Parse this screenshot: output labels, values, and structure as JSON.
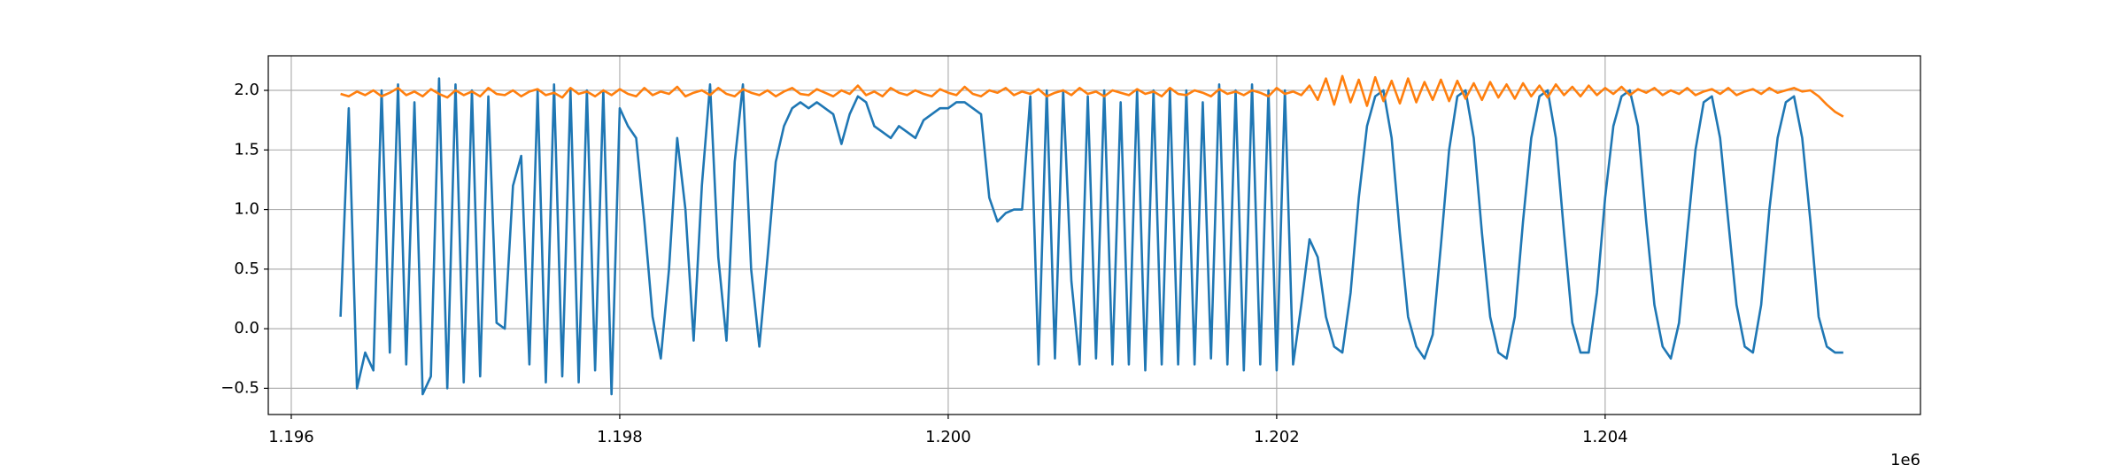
{
  "chart_data": {
    "type": "line",
    "x": [
      1196300,
      1196350,
      1196400,
      1196450,
      1196500,
      1196550,
      1196600,
      1196650,
      1196700,
      1196750,
      1196800,
      1196850,
      1196900,
      1196950,
      1197000,
      1197050,
      1197100,
      1197150,
      1197200,
      1197250,
      1197300,
      1197350,
      1197400,
      1197450,
      1197500,
      1197550,
      1197600,
      1197650,
      1197700,
      1197750,
      1197800,
      1197850,
      1197900,
      1197950,
      1198000,
      1198050,
      1198100,
      1198150,
      1198200,
      1198250,
      1198300,
      1198350,
      1198400,
      1198450,
      1198500,
      1198550,
      1198600,
      1198650,
      1198700,
      1198750,
      1198800,
      1198850,
      1198900,
      1198950,
      1199000,
      1199050,
      1199100,
      1199150,
      1199200,
      1199250,
      1199300,
      1199350,
      1199400,
      1199450,
      1199500,
      1199550,
      1199600,
      1199650,
      1199700,
      1199750,
      1199800,
      1199850,
      1199900,
      1199950,
      1200000,
      1200050,
      1200100,
      1200150,
      1200200,
      1200250,
      1200300,
      1200350,
      1200400,
      1200450,
      1200500,
      1200550,
      1200600,
      1200650,
      1200700,
      1200750,
      1200800,
      1200850,
      1200900,
      1200950,
      1201000,
      1201050,
      1201100,
      1201150,
      1201200,
      1201250,
      1201300,
      1201350,
      1201400,
      1201450,
      1201500,
      1201550,
      1201600,
      1201650,
      1201700,
      1201750,
      1201800,
      1201850,
      1201900,
      1201950,
      1202000,
      1202050,
      1202100,
      1202150,
      1202200,
      1202250,
      1202300,
      1202350,
      1202400,
      1202450,
      1202500,
      1202550,
      1202600,
      1202650,
      1202700,
      1202750,
      1202800,
      1202850,
      1202900,
      1202950,
      1203000,
      1203050,
      1203100,
      1203150,
      1203200,
      1203250,
      1203300,
      1203350,
      1203400,
      1203450,
      1203500,
      1203550,
      1203600,
      1203650,
      1203700,
      1203750,
      1203800,
      1203850,
      1203900,
      1203950,
      1204000,
      1204050,
      1204100,
      1204150,
      1204200,
      1204250,
      1204300,
      1204350,
      1204400,
      1204450,
      1204500,
      1204550,
      1204600,
      1204650,
      1204700,
      1204750,
      1204800,
      1204850,
      1204900,
      1204950,
      1205000,
      1205050,
      1205100,
      1205150,
      1205200,
      1205250,
      1205300,
      1205350,
      1205400,
      1205450
    ],
    "series": [
      {
        "color": "#1f77b4",
        "values": [
          0.1,
          1.85,
          -0.5,
          -0.2,
          -0.35,
          2.0,
          -0.2,
          2.05,
          -0.3,
          1.9,
          -0.55,
          -0.4,
          2.1,
          -0.5,
          2.05,
          -0.45,
          2.0,
          -0.4,
          1.95,
          0.05,
          0.0,
          1.2,
          1.45,
          -0.3,
          2.0,
          -0.45,
          2.05,
          -0.4,
          2.0,
          -0.45,
          2.0,
          -0.35,
          2.0,
          -0.55,
          1.85,
          1.7,
          1.6,
          0.9,
          0.1,
          -0.25,
          0.5,
          1.6,
          1.0,
          -0.1,
          1.2,
          2.05,
          0.6,
          -0.1,
          1.4,
          2.05,
          0.5,
          -0.15,
          0.6,
          1.4,
          1.7,
          1.85,
          1.9,
          1.85,
          1.9,
          1.85,
          1.8,
          1.55,
          1.8,
          1.95,
          1.9,
          1.7,
          1.65,
          1.6,
          1.7,
          1.65,
          1.6,
          1.75,
          1.8,
          1.85,
          1.85,
          1.9,
          1.9,
          1.85,
          1.8,
          1.1,
          0.9,
          0.97,
          1.0,
          1.0,
          1.95,
          -0.3,
          2.0,
          -0.25,
          2.0,
          0.4,
          -0.3,
          1.95,
          -0.25,
          2.0,
          -0.3,
          1.9,
          -0.3,
          2.0,
          -0.35,
          2.0,
          -0.3,
          2.0,
          -0.3,
          2.0,
          -0.3,
          1.9,
          -0.25,
          2.05,
          -0.3,
          2.0,
          -0.35,
          2.05,
          -0.3,
          2.0,
          -0.35,
          2.0,
          -0.3,
          0.2,
          0.75,
          0.6,
          0.1,
          -0.15,
          -0.2,
          0.3,
          1.1,
          1.7,
          1.95,
          2.0,
          1.6,
          0.8,
          0.1,
          -0.15,
          -0.25,
          -0.05,
          0.7,
          1.5,
          1.95,
          2.0,
          1.6,
          0.8,
          0.1,
          -0.2,
          -0.25,
          0.1,
          0.9,
          1.6,
          1.95,
          2.0,
          1.6,
          0.8,
          0.05,
          -0.2,
          -0.2,
          0.3,
          1.1,
          1.7,
          1.95,
          2.0,
          1.7,
          0.9,
          0.2,
          -0.15,
          -0.25,
          0.05,
          0.8,
          1.5,
          1.9,
          1.95,
          1.6,
          0.9,
          0.2,
          -0.15,
          -0.2,
          0.2,
          1.0,
          1.6,
          1.9,
          1.95,
          1.6,
          0.9,
          0.1,
          -0.15,
          -0.2,
          -0.2
        ]
      },
      {
        "color": "#ff7f0e",
        "values": [
          1.97,
          1.95,
          1.99,
          1.96,
          2.0,
          1.95,
          1.98,
          2.02,
          1.96,
          1.99,
          1.95,
          2.01,
          1.97,
          1.94,
          2.0,
          1.96,
          1.99,
          1.95,
          2.02,
          1.97,
          1.96,
          2.0,
          1.95,
          1.99,
          2.01,
          1.96,
          1.98,
          1.94,
          2.02,
          1.97,
          1.99,
          1.95,
          2.0,
          1.96,
          2.01,
          1.97,
          1.95,
          2.02,
          1.96,
          1.99,
          1.97,
          2.03,
          1.95,
          1.98,
          2.0,
          1.96,
          2.02,
          1.97,
          1.95,
          2.01,
          1.98,
          1.96,
          2.0,
          1.95,
          1.99,
          2.02,
          1.97,
          1.96,
          2.01,
          1.98,
          1.95,
          2.0,
          1.97,
          2.04,
          1.96,
          1.99,
          1.95,
          2.02,
          1.98,
          1.96,
          2.0,
          1.97,
          1.95,
          2.01,
          1.98,
          1.96,
          2.03,
          1.97,
          1.95,
          2.0,
          1.98,
          2.02,
          1.96,
          1.99,
          1.97,
          2.01,
          1.95,
          1.98,
          2.0,
          1.96,
          2.02,
          1.97,
          1.99,
          1.95,
          2.0,
          1.98,
          1.96,
          2.01,
          1.97,
          1.99,
          1.95,
          2.02,
          1.97,
          1.96,
          2.0,
          1.98,
          1.95,
          2.01,
          1.97,
          1.99,
          1.96,
          2.0,
          1.98,
          1.95,
          2.02,
          1.97,
          1.99,
          1.96,
          2.04,
          1.92,
          2.1,
          1.88,
          2.12,
          1.9,
          2.09,
          1.87,
          2.11,
          1.91,
          2.08,
          1.89,
          2.1,
          1.9,
          2.07,
          1.92,
          2.09,
          1.91,
          2.08,
          1.93,
          2.06,
          1.92,
          2.07,
          1.94,
          2.05,
          1.93,
          2.06,
          1.95,
          2.04,
          1.94,
          2.05,
          1.96,
          2.03,
          1.95,
          2.04,
          1.96,
          2.02,
          1.97,
          2.03,
          1.96,
          2.01,
          1.98,
          2.02,
          1.96,
          2.0,
          1.97,
          2.02,
          1.96,
          1.99,
          2.01,
          1.97,
          2.02,
          1.96,
          1.99,
          2.01,
          1.97,
          2.02,
          1.98,
          2.0,
          2.02,
          1.99,
          2.0,
          1.95,
          1.88,
          1.82,
          1.78
        ]
      }
    ],
    "xlim": [
      1195860,
      1205920
    ],
    "ylim": [
      -0.72,
      2.29
    ],
    "xticks": [
      {
        "value": 1196000,
        "label": "1.196"
      },
      {
        "value": 1198000,
        "label": "1.198"
      },
      {
        "value": 1200000,
        "label": "1.200"
      },
      {
        "value": 1202000,
        "label": "1.202"
      },
      {
        "value": 1204000,
        "label": "1.204"
      }
    ],
    "yticks": [
      {
        "value": -0.5,
        "label": "−0.5"
      },
      {
        "value": 0,
        "label": "0.0"
      },
      0.5,
      {
        "value": 1,
        "label": "1.0"
      },
      1.5,
      {
        "value": 2,
        "label": "2.0"
      }
    ],
    "x_offset_label": "1e6",
    "grid": true
  }
}
